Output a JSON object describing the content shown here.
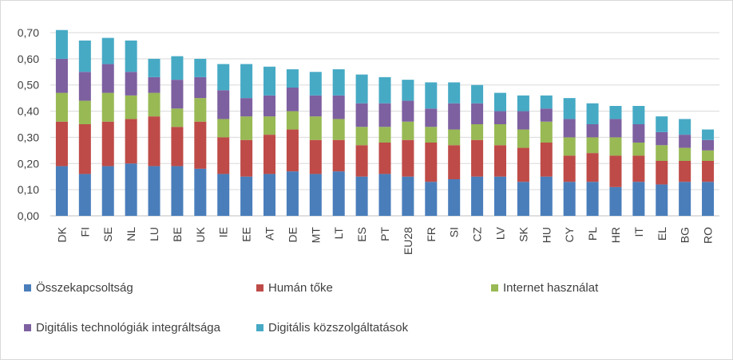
{
  "chart_data": {
    "type": "bar",
    "stacked": true,
    "categories": [
      "DK",
      "FI",
      "SE",
      "NL",
      "LU",
      "BE",
      "UK",
      "IE",
      "EE",
      "AT",
      "DE",
      "MT",
      "LT",
      "ES",
      "PT",
      "EU28",
      "FR",
      "SI",
      "CZ",
      "LV",
      "SK",
      "HU",
      "CY",
      "PL",
      "HR",
      "IT",
      "EL",
      "BG",
      "RO"
    ],
    "ylim": [
      0,
      0.7
    ],
    "yticks": [
      "0,00",
      "0,10",
      "0,20",
      "0,30",
      "0,40",
      "0,50",
      "0,60",
      "0,70"
    ],
    "grid": true,
    "legend_position": "bottom",
    "series": [
      {
        "name": "Összekapcsoltság",
        "color": "#4a7ebb",
        "values": [
          0.19,
          0.16,
          0.19,
          0.2,
          0.19,
          0.19,
          0.18,
          0.16,
          0.15,
          0.16,
          0.17,
          0.16,
          0.17,
          0.15,
          0.16,
          0.15,
          0.13,
          0.14,
          0.15,
          0.15,
          0.13,
          0.15,
          0.13,
          0.13,
          0.11,
          0.13,
          0.12,
          0.13,
          0.13
        ]
      },
      {
        "name": "Humán tőke",
        "color": "#be4b48",
        "values": [
          0.17,
          0.19,
          0.17,
          0.17,
          0.19,
          0.15,
          0.18,
          0.14,
          0.14,
          0.15,
          0.16,
          0.13,
          0.12,
          0.12,
          0.12,
          0.14,
          0.15,
          0.13,
          0.14,
          0.12,
          0.13,
          0.13,
          0.1,
          0.11,
          0.12,
          0.1,
          0.09,
          0.08,
          0.08
        ]
      },
      {
        "name": "Internet használat",
        "color": "#98b954",
        "values": [
          0.11,
          0.09,
          0.11,
          0.09,
          0.09,
          0.07,
          0.09,
          0.07,
          0.09,
          0.07,
          0.07,
          0.09,
          0.08,
          0.07,
          0.06,
          0.07,
          0.06,
          0.06,
          0.06,
          0.08,
          0.07,
          0.08,
          0.07,
          0.06,
          0.07,
          0.05,
          0.06,
          0.05,
          0.04
        ]
      },
      {
        "name": "Digitális technológiák integráltsága",
        "color": "#7d60a0",
        "values": [
          0.13,
          0.11,
          0.11,
          0.09,
          0.06,
          0.11,
          0.08,
          0.11,
          0.07,
          0.08,
          0.09,
          0.08,
          0.09,
          0.09,
          0.09,
          0.08,
          0.07,
          0.1,
          0.08,
          0.05,
          0.07,
          0.05,
          0.07,
          0.05,
          0.07,
          0.07,
          0.05,
          0.05,
          0.04
        ]
      },
      {
        "name": "Digitális közszolgáltatások",
        "color": "#46aac5",
        "values": [
          0.11,
          0.12,
          0.1,
          0.12,
          0.07,
          0.09,
          0.07,
          0.1,
          0.13,
          0.11,
          0.07,
          0.09,
          0.1,
          0.11,
          0.1,
          0.08,
          0.1,
          0.08,
          0.07,
          0.07,
          0.06,
          0.05,
          0.08,
          0.08,
          0.05,
          0.07,
          0.06,
          0.06,
          0.04
        ]
      }
    ]
  }
}
